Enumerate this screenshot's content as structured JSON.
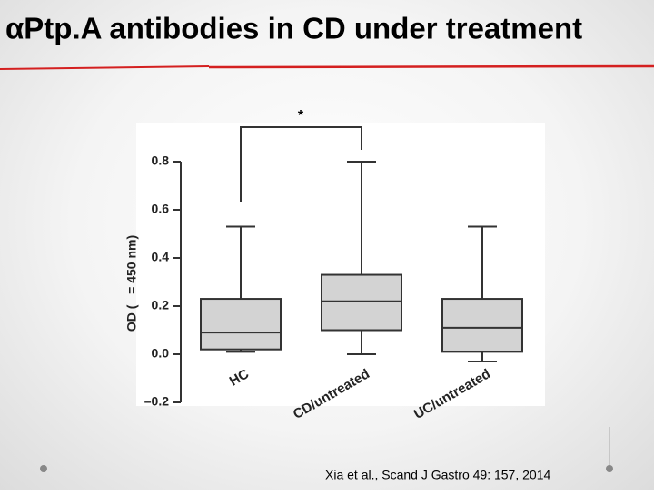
{
  "chart_data": {
    "type": "box",
    "title": "αPtp.A antibodies in CD under treatment",
    "ylabel": "OD (   = 450 nm)",
    "annotation": "*",
    "categories": [
      "HC",
      "CD/untreated",
      "UC/untreated"
    ],
    "boxes": [
      {
        "min": 0.01,
        "q1": 0.02,
        "median": 0.09,
        "q3": 0.23,
        "max": 0.53
      },
      {
        "min": 0.0,
        "q1": 0.1,
        "median": 0.22,
        "q3": 0.33,
        "max": 0.8
      },
      {
        "min": -0.03,
        "q1": 0.01,
        "median": 0.11,
        "q3": 0.23,
        "max": 0.53
      }
    ],
    "color": "#d3d3d3",
    "ylim": [
      -0.2,
      0.8
    ],
    "yticks": [
      {
        "value": -0.2,
        "label": "–0.2"
      },
      {
        "value": 0,
        "label": "0.0"
      },
      0.2,
      0.4,
      0.6,
      0.8
    ]
  },
  "citation": "Xia et al., Scand J Gastro 49: 157, 2014"
}
